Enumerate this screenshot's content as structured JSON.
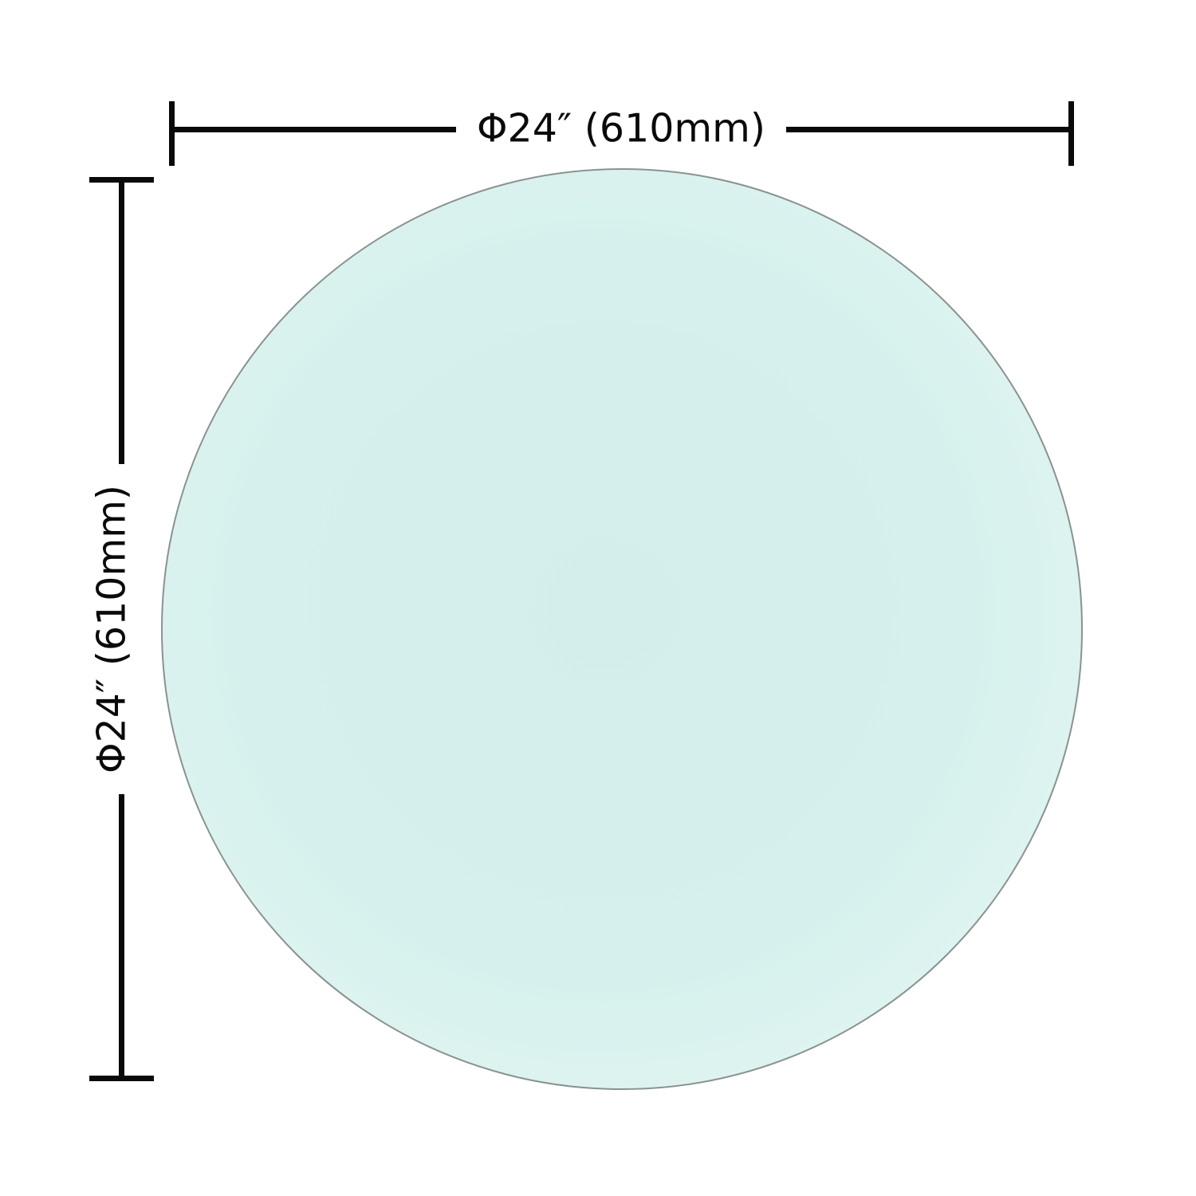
{
  "diagram": {
    "type": "product-dimension-diagram",
    "subject": "round-glass-table-top",
    "horizontal_dimension": {
      "label": "Φ24″ (610mm)"
    },
    "vertical_dimension": {
      "label": "Φ24″ (610mm)"
    },
    "colors": {
      "background": "#ffffff",
      "dimension_line": "#0a0a0a",
      "circle_stroke": "#8a9290",
      "circle_fill_center": "#d3efeb",
      "circle_fill_edge": "#eaf9f6",
      "label_text": "#0a0a0a"
    }
  }
}
